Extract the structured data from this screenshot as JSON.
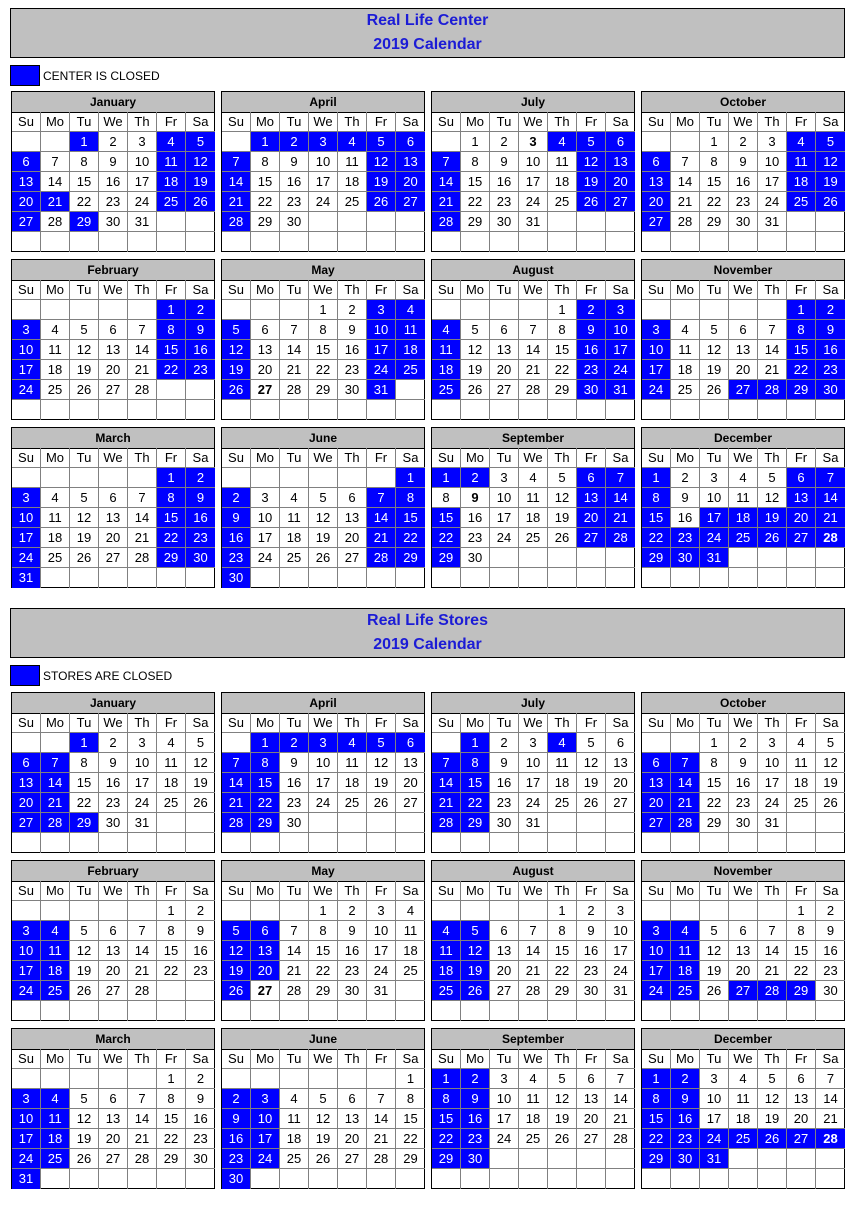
{
  "weekday_labels": [
    "Su",
    "Mo",
    "Tu",
    "We",
    "Th",
    "Fr",
    "Sa"
  ],
  "sections": [
    {
      "title_line1": "Real Life Center",
      "title_line2": "2019 Calendar",
      "legend": "CENTER IS CLOSED",
      "months": [
        {
          "name": "January",
          "days": 31,
          "start": 2,
          "closed": [
            1,
            4,
            5,
            6,
            11,
            12,
            13,
            18,
            19,
            20,
            21,
            25,
            26,
            27,
            29
          ],
          "bold": []
        },
        {
          "name": "April",
          "days": 30,
          "start": 1,
          "closed": [
            1,
            2,
            3,
            4,
            5,
            6,
            7,
            12,
            13,
            14,
            19,
            20,
            21,
            26,
            27,
            28
          ],
          "bold": []
        },
        {
          "name": "July",
          "days": 31,
          "start": 1,
          "closed": [
            4,
            5,
            6,
            7,
            12,
            13,
            14,
            19,
            20,
            21,
            26,
            27,
            28
          ],
          "bold": [
            3
          ]
        },
        {
          "name": "October",
          "days": 31,
          "start": 2,
          "closed": [
            4,
            5,
            6,
            11,
            12,
            13,
            18,
            19,
            20,
            25,
            26,
            27
          ],
          "bold": []
        },
        {
          "name": "February",
          "days": 28,
          "start": 5,
          "closed": [
            1,
            2,
            3,
            8,
            9,
            10,
            15,
            16,
            17,
            22,
            23,
            24
          ],
          "bold": []
        },
        {
          "name": "May",
          "days": 31,
          "start": 3,
          "closed": [
            3,
            4,
            5,
            10,
            11,
            12,
            17,
            18,
            19,
            24,
            25,
            26,
            31
          ],
          "bold": [
            27
          ]
        },
        {
          "name": "August",
          "days": 31,
          "start": 4,
          "closed": [
            2,
            3,
            4,
            9,
            10,
            11,
            16,
            17,
            18,
            23,
            24,
            25,
            30,
            31
          ],
          "bold": []
        },
        {
          "name": "November",
          "days": 30,
          "start": 5,
          "closed": [
            1,
            2,
            3,
            8,
            9,
            10,
            15,
            16,
            17,
            22,
            23,
            24,
            27,
            28,
            29,
            30
          ],
          "bold": []
        },
        {
          "name": "March",
          "days": 31,
          "start": 5,
          "closed": [
            1,
            2,
            3,
            8,
            9,
            10,
            15,
            16,
            17,
            22,
            23,
            24,
            29,
            30,
            31
          ],
          "bold": []
        },
        {
          "name": "June",
          "days": 30,
          "start": 6,
          "closed": [
            1,
            2,
            7,
            8,
            9,
            14,
            15,
            16,
            21,
            22,
            23,
            28,
            29,
            30
          ],
          "bold": []
        },
        {
          "name": "September",
          "days": 30,
          "start": 0,
          "closed": [
            1,
            2,
            6,
            7,
            13,
            14,
            15,
            20,
            21,
            22,
            27,
            28,
            29
          ],
          "bold": [
            9
          ]
        },
        {
          "name": "December",
          "days": 31,
          "start": 0,
          "closed": [
            1,
            6,
            7,
            8,
            13,
            14,
            15,
            17,
            18,
            19,
            20,
            21,
            22,
            23,
            24,
            25,
            26,
            27,
            28,
            29,
            30,
            31
          ],
          "bold": [
            28
          ]
        }
      ]
    },
    {
      "title_line1": "Real Life Stores",
      "title_line2": "2019 Calendar",
      "legend": "STORES ARE CLOSED",
      "months": [
        {
          "name": "January",
          "days": 31,
          "start": 2,
          "closed": [
            1,
            6,
            7,
            13,
            14,
            20,
            21,
            27,
            28,
            29
          ],
          "bold": []
        },
        {
          "name": "April",
          "days": 30,
          "start": 1,
          "closed": [
            1,
            2,
            3,
            4,
            5,
            6,
            7,
            8,
            14,
            15,
            21,
            22,
            28,
            29
          ],
          "bold": []
        },
        {
          "name": "July",
          "days": 31,
          "start": 1,
          "closed": [
            1,
            4,
            7,
            8,
            14,
            15,
            21,
            22,
            28,
            29
          ],
          "bold": []
        },
        {
          "name": "October",
          "days": 31,
          "start": 2,
          "closed": [
            6,
            7,
            13,
            14,
            20,
            21,
            27,
            28
          ],
          "bold": []
        },
        {
          "name": "February",
          "days": 28,
          "start": 5,
          "closed": [
            3,
            4,
            10,
            11,
            17,
            18,
            24,
            25
          ],
          "bold": []
        },
        {
          "name": "May",
          "days": 31,
          "start": 3,
          "closed": [
            5,
            6,
            12,
            13,
            19,
            20,
            26
          ],
          "bold": [
            27
          ]
        },
        {
          "name": "August",
          "days": 31,
          "start": 4,
          "closed": [
            4,
            5,
            11,
            12,
            18,
            19,
            25,
            26
          ],
          "bold": []
        },
        {
          "name": "November",
          "days": 30,
          "start": 5,
          "closed": [
            3,
            4,
            10,
            11,
            17,
            18,
            24,
            25,
            27,
            28,
            29
          ],
          "bold": []
        },
        {
          "name": "March",
          "days": 31,
          "start": 5,
          "closed": [
            3,
            4,
            10,
            11,
            17,
            18,
            24,
            25,
            31
          ],
          "bold": []
        },
        {
          "name": "June",
          "days": 30,
          "start": 6,
          "closed": [
            2,
            3,
            9,
            10,
            16,
            17,
            23,
            24,
            30
          ],
          "bold": []
        },
        {
          "name": "September",
          "days": 30,
          "start": 0,
          "closed": [
            1,
            2,
            8,
            9,
            15,
            16,
            22,
            23,
            29,
            30
          ],
          "bold": []
        },
        {
          "name": "December",
          "days": 31,
          "start": 0,
          "closed": [
            1,
            2,
            8,
            9,
            15,
            16,
            22,
            23,
            24,
            25,
            26,
            27,
            28,
            29,
            30,
            31
          ],
          "bold": [
            28
          ]
        }
      ]
    }
  ],
  "colors": {
    "closed": "#0000ff",
    "header": "#c0c0c0",
    "title_text": "#1c1cd6"
  }
}
